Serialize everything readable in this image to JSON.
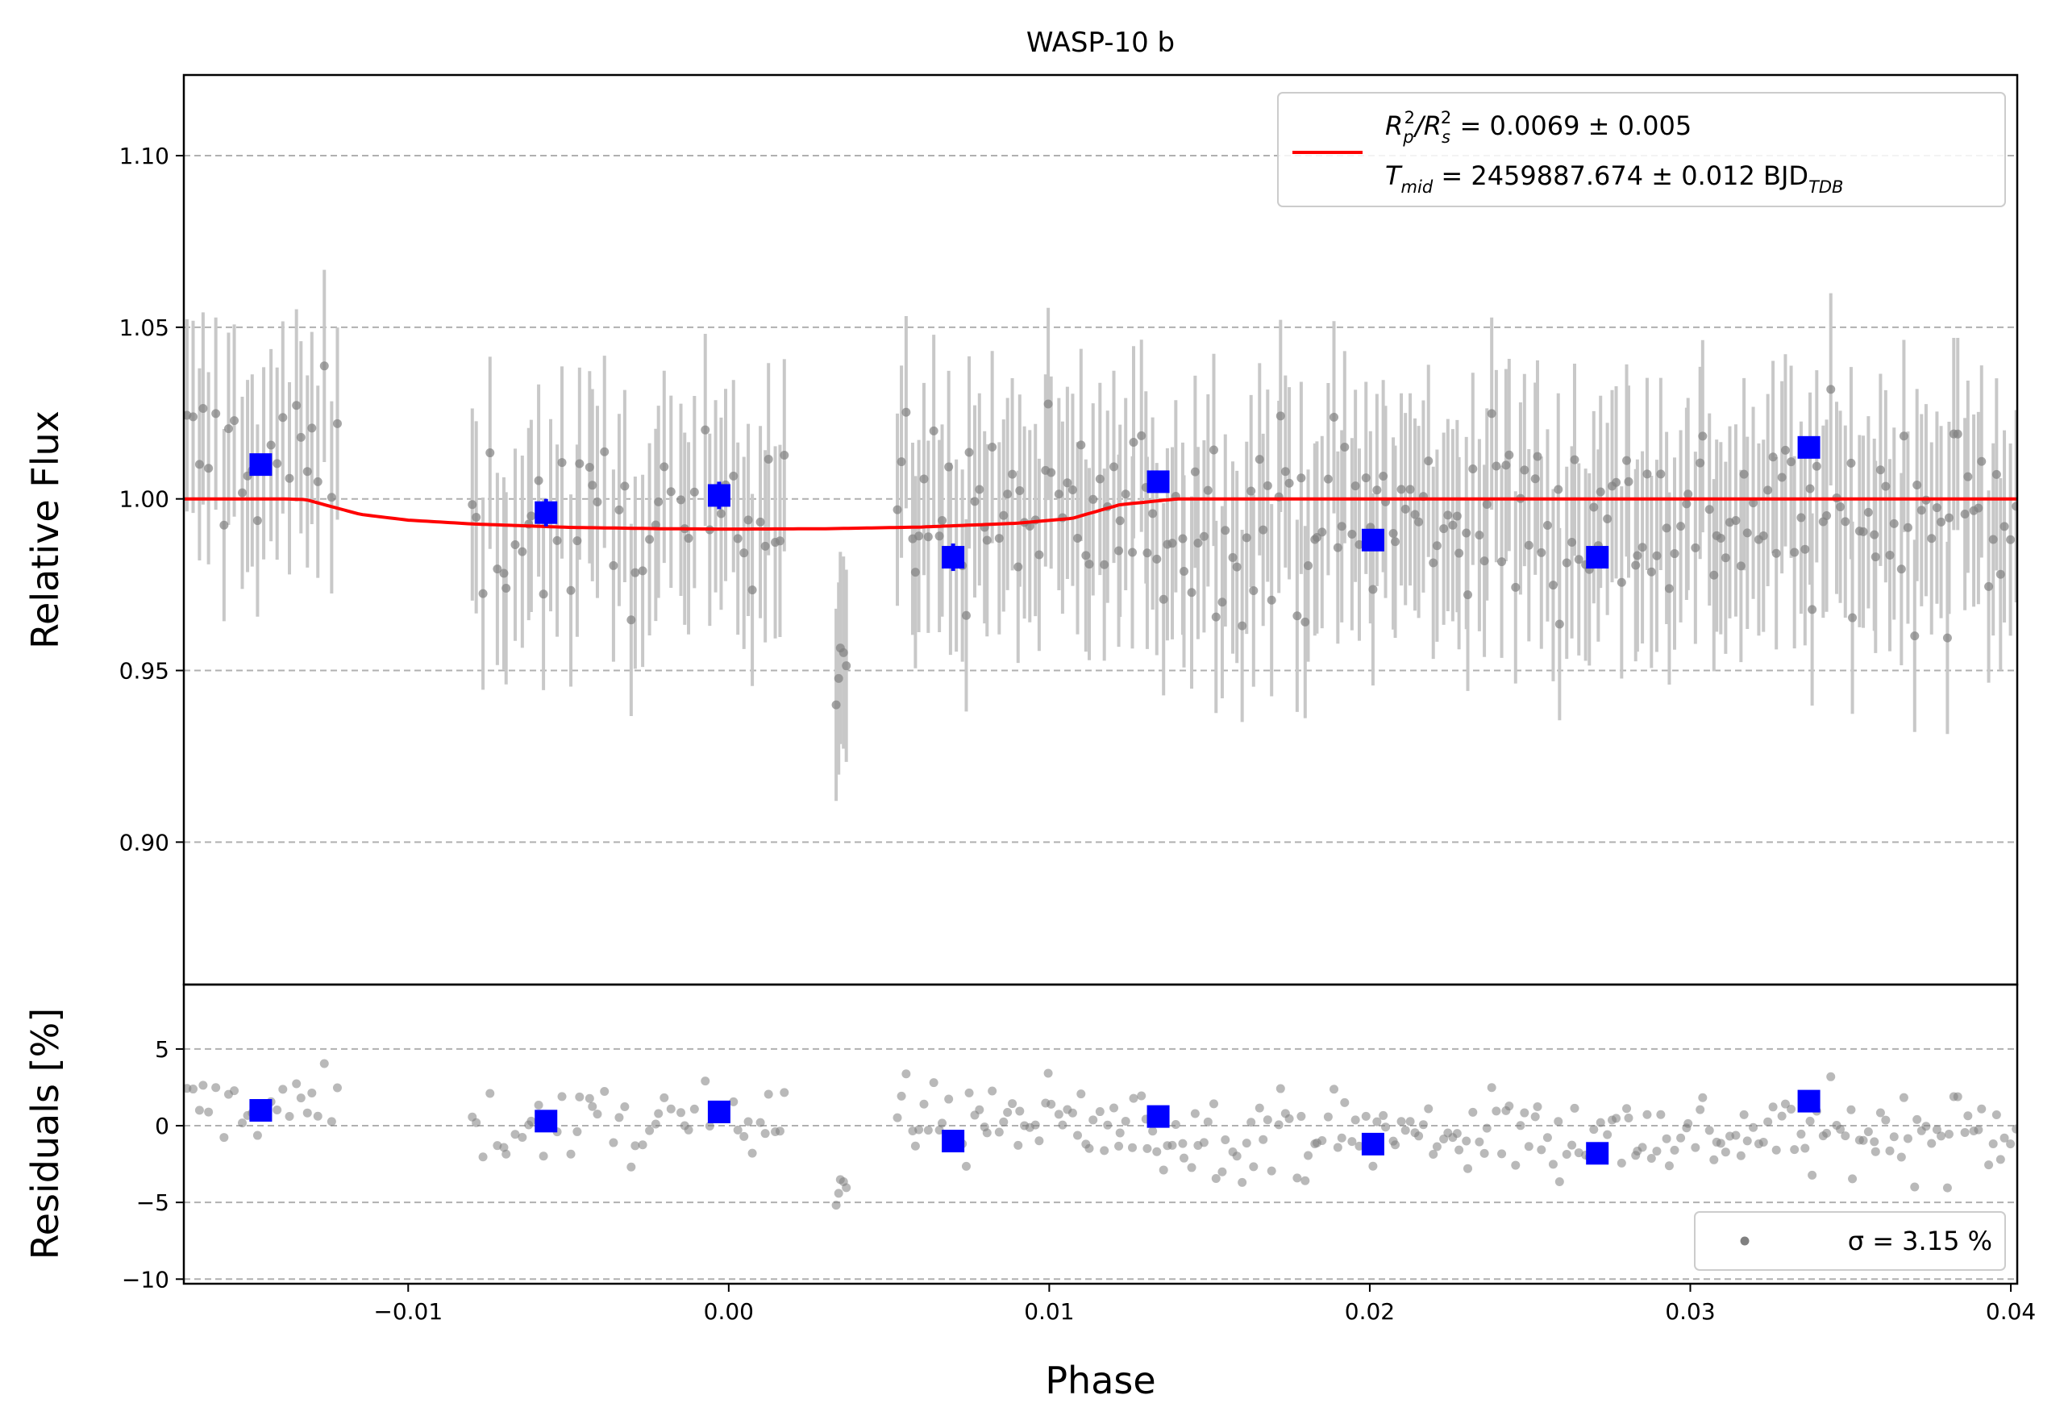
{
  "title": "WASP-10 b",
  "colors": {
    "model": "#ff0000",
    "binned": "#0000ff",
    "raw_points": "#808080",
    "error_bars": "#c8c8c8",
    "grid": "#b0b0b0"
  },
  "legend": {
    "line1_prefix": "R",
    "line1_sub_p": "p",
    "line1_sup_2a": "2",
    "line1_slash": "/R",
    "line1_sub_s": "s",
    "line1_sup_2b": "2",
    "line1_value": " = 0.0069 ± 0.005",
    "line2_prefix": "T",
    "line2_sub_mid": "mid",
    "line2_value": " = 2459887.674 ± 0.012 BJD",
    "line2_sub_tdb": "TDB",
    "residual_label": "σ = 3.15 %"
  },
  "chart_data": [
    {
      "type": "scatter",
      "panel": "light-curve",
      "title": "WASP-10 b",
      "xlabel": "",
      "ylabel": "Relative Flux",
      "xlim": [
        -0.017,
        0.0402
      ],
      "ylim": [
        0.8585,
        1.1235
      ],
      "yticks": [
        0.9,
        0.95,
        1.0,
        1.05,
        1.1
      ],
      "ytick_labels": [
        "0.90",
        "0.95",
        "1.00",
        "1.05",
        "1.10"
      ],
      "grid": "y-dashed",
      "legend_position": "top-right",
      "raw_error_bar": 0.028,
      "raw_segments": [
        {
          "x0": -0.017,
          "x1": -0.0121,
          "level": 1.012,
          "n": 26,
          "spread": 0.021
        },
        {
          "x0": -0.0081,
          "x1": -0.0005,
          "level": 0.992,
          "n": 40,
          "spread": 0.022
        },
        {
          "x0": -0.0005,
          "x1": 0.0019,
          "level": 1.003,
          "n": 14,
          "spread": 0.023
        },
        {
          "x0": 0.0033,
          "x1": 0.0037,
          "level": 0.955,
          "n": 5,
          "spread": 0.026
        },
        {
          "x0": 0.0052,
          "x1": 0.0402,
          "level": 0.995,
          "n": 245,
          "spread": 0.025
        }
      ],
      "binned": {
        "x": [
          -0.0146,
          -0.0057,
          -0.0003,
          0.007,
          0.0134,
          0.0201,
          0.0271,
          0.0337
        ],
        "y": [
          1.01,
          0.996,
          1.001,
          0.983,
          1.005,
          0.988,
          0.983,
          1.015
        ],
        "err": [
          0.003,
          0.004,
          0.004,
          0.004,
          0.003,
          0.003,
          0.003,
          0.003
        ]
      },
      "model": {
        "x": [
          -0.017,
          -0.0139,
          -0.0132,
          -0.0115,
          -0.01,
          -0.008,
          -0.005,
          -0.002,
          0.0,
          0.003,
          0.006,
          0.009,
          0.0107,
          0.0122,
          0.014,
          0.0402
        ],
        "y": [
          1.0,
          1.0,
          0.9998,
          0.9955,
          0.9938,
          0.9927,
          0.9917,
          0.9913,
          0.9912,
          0.9913,
          0.9918,
          0.9929,
          0.9943,
          0.9983,
          1.0,
          1.0
        ]
      }
    },
    {
      "type": "scatter",
      "panel": "residuals",
      "xlabel": "Phase",
      "ylabel": "Residuals [%]",
      "xlim": [
        -0.017,
        0.0402
      ],
      "ylim": [
        -10.3,
        9.2
      ],
      "xticks": [
        -0.01,
        0.0,
        0.01,
        0.02,
        0.03,
        0.04
      ],
      "xtick_labels": [
        "−0.01",
        "0.00",
        "0.01",
        "0.02",
        "0.03",
        "0.04"
      ],
      "yticks": [
        -10,
        -5,
        0,
        5
      ],
      "ytick_labels": [
        "−10",
        "−5",
        "0",
        "5"
      ],
      "grid": "y-dashed",
      "legend_position": "bottom-right",
      "sigma_percent": 3.15,
      "binned": {
        "x": [
          -0.0146,
          -0.0057,
          -0.0003,
          0.007,
          0.0134,
          0.0201,
          0.0271,
          0.0337
        ],
        "y": [
          1.0,
          0.3,
          0.9,
          -1.0,
          0.6,
          -1.2,
          -1.8,
          1.6
        ]
      }
    }
  ]
}
